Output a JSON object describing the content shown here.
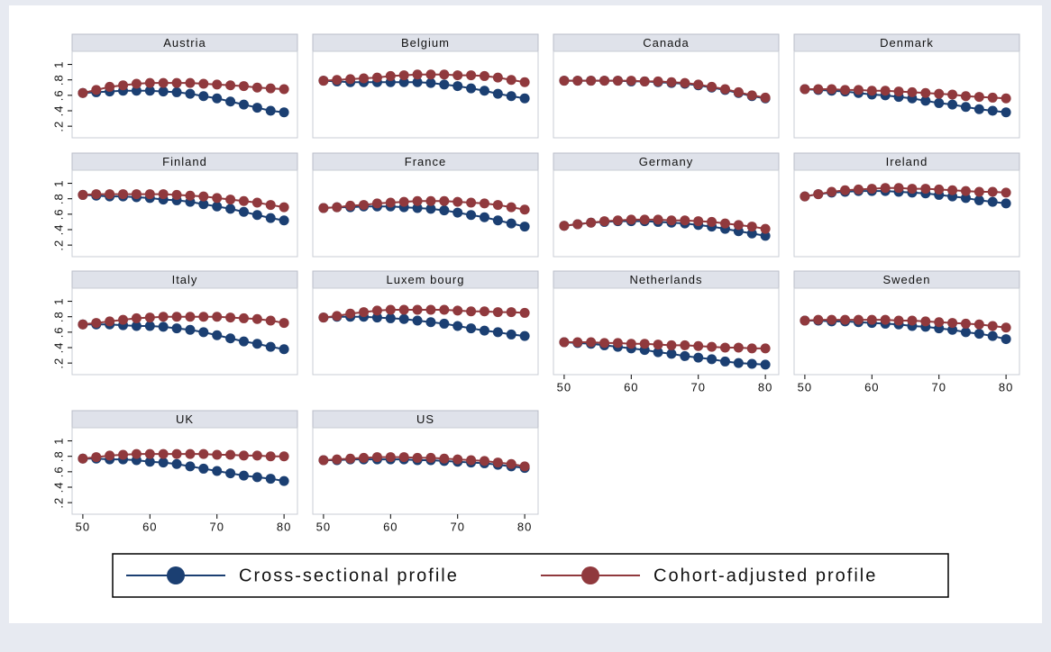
{
  "chart_data": {
    "type": "line",
    "x": [
      50,
      52,
      54,
      56,
      58,
      60,
      62,
      64,
      66,
      68,
      70,
      72,
      74,
      76,
      78,
      80
    ],
    "xlim": [
      48.4,
      82
    ],
    "xticks": [
      50,
      60,
      70,
      80
    ],
    "ylim": [
      0.05,
      1.17
    ],
    "yticks": [
      {
        "value": 0.2,
        "label": ".2"
      },
      {
        "value": 0.4,
        "label": ".4"
      },
      {
        "value": 0.6,
        "label": ".6"
      },
      {
        "value": 0.8,
        "label": ".8"
      },
      1
    ],
    "series": [
      {
        "name": "Cross-sectional profile",
        "color": "#1b3f72"
      },
      {
        "name": "Cohort-adjusted profile",
        "color": "#90393d"
      }
    ],
    "panels": [
      {
        "title": "Austria",
        "values": [
          [
            0.63,
            0.64,
            0.65,
            0.66,
            0.66,
            0.66,
            0.65,
            0.64,
            0.62,
            0.59,
            0.56,
            0.52,
            0.48,
            0.44,
            0.4,
            0.38
          ],
          [
            0.63,
            0.67,
            0.71,
            0.73,
            0.75,
            0.76,
            0.76,
            0.76,
            0.76,
            0.75,
            0.74,
            0.73,
            0.72,
            0.7,
            0.69,
            0.68
          ]
        ]
      },
      {
        "title": "Belgium",
        "values": [
          [
            0.79,
            0.78,
            0.77,
            0.77,
            0.77,
            0.77,
            0.77,
            0.77,
            0.76,
            0.74,
            0.72,
            0.69,
            0.66,
            0.62,
            0.59,
            0.56
          ],
          [
            0.79,
            0.8,
            0.81,
            0.82,
            0.83,
            0.85,
            0.86,
            0.87,
            0.87,
            0.87,
            0.86,
            0.86,
            0.85,
            0.83,
            0.8,
            0.77
          ]
        ]
      },
      {
        "title": "Canada",
        "values": [
          [
            0.79,
            0.79,
            0.79,
            0.79,
            0.79,
            0.78,
            0.78,
            0.77,
            0.76,
            0.75,
            0.73,
            0.7,
            0.67,
            0.63,
            0.59,
            0.56
          ],
          [
            0.79,
            0.79,
            0.79,
            0.79,
            0.79,
            0.79,
            0.78,
            0.78,
            0.77,
            0.76,
            0.74,
            0.71,
            0.68,
            0.64,
            0.6,
            0.57
          ]
        ]
      },
      {
        "title": "Denmark",
        "values": [
          [
            0.68,
            0.67,
            0.66,
            0.65,
            0.63,
            0.61,
            0.6,
            0.58,
            0.56,
            0.53,
            0.5,
            0.48,
            0.45,
            0.42,
            0.4,
            0.38
          ],
          [
            0.68,
            0.68,
            0.68,
            0.67,
            0.67,
            0.66,
            0.66,
            0.65,
            0.64,
            0.63,
            0.62,
            0.61,
            0.59,
            0.58,
            0.57,
            0.56
          ]
        ]
      },
      {
        "title": "Finland",
        "values": [
          [
            0.85,
            0.84,
            0.83,
            0.83,
            0.82,
            0.81,
            0.79,
            0.78,
            0.76,
            0.73,
            0.7,
            0.67,
            0.63,
            0.59,
            0.55,
            0.52
          ],
          [
            0.85,
            0.86,
            0.86,
            0.86,
            0.86,
            0.86,
            0.86,
            0.85,
            0.84,
            0.83,
            0.81,
            0.79,
            0.77,
            0.75,
            0.72,
            0.69
          ]
        ]
      },
      {
        "title": "France",
        "values": [
          [
            0.68,
            0.69,
            0.69,
            0.7,
            0.7,
            0.7,
            0.69,
            0.68,
            0.67,
            0.65,
            0.62,
            0.59,
            0.56,
            0.52,
            0.48,
            0.44
          ],
          [
            0.68,
            0.69,
            0.71,
            0.72,
            0.74,
            0.75,
            0.76,
            0.77,
            0.77,
            0.77,
            0.76,
            0.75,
            0.74,
            0.72,
            0.69,
            0.66
          ]
        ]
      },
      {
        "title": "Germany",
        "values": [
          [
            0.45,
            0.47,
            0.49,
            0.5,
            0.51,
            0.51,
            0.51,
            0.5,
            0.49,
            0.48,
            0.46,
            0.44,
            0.41,
            0.38,
            0.35,
            0.32
          ],
          [
            0.45,
            0.47,
            0.49,
            0.51,
            0.52,
            0.53,
            0.53,
            0.53,
            0.52,
            0.52,
            0.51,
            0.5,
            0.48,
            0.46,
            0.44,
            0.41
          ]
        ]
      },
      {
        "title": "Ireland",
        "values": [
          [
            0.83,
            0.86,
            0.88,
            0.89,
            0.9,
            0.9,
            0.9,
            0.89,
            0.88,
            0.87,
            0.85,
            0.83,
            0.81,
            0.78,
            0.76,
            0.74
          ],
          [
            0.83,
            0.86,
            0.89,
            0.91,
            0.92,
            0.93,
            0.94,
            0.94,
            0.93,
            0.93,
            0.92,
            0.91,
            0.9,
            0.89,
            0.89,
            0.88
          ]
        ]
      },
      {
        "title": "Italy",
        "values": [
          [
            0.7,
            0.7,
            0.7,
            0.69,
            0.68,
            0.68,
            0.67,
            0.65,
            0.63,
            0.6,
            0.56,
            0.52,
            0.48,
            0.45,
            0.41,
            0.38
          ],
          [
            0.7,
            0.72,
            0.74,
            0.76,
            0.78,
            0.79,
            0.8,
            0.8,
            0.8,
            0.8,
            0.8,
            0.79,
            0.78,
            0.77,
            0.75,
            0.72
          ]
        ]
      },
      {
        "title": "Luxem bourg",
        "values": [
          [
            0.79,
            0.8,
            0.8,
            0.8,
            0.79,
            0.78,
            0.77,
            0.75,
            0.73,
            0.71,
            0.68,
            0.65,
            0.62,
            0.6,
            0.57,
            0.55
          ],
          [
            0.79,
            0.81,
            0.84,
            0.86,
            0.88,
            0.89,
            0.89,
            0.89,
            0.89,
            0.89,
            0.88,
            0.87,
            0.87,
            0.86,
            0.86,
            0.85
          ]
        ]
      },
      {
        "title": "Netherlands",
        "values": [
          [
            0.47,
            0.46,
            0.45,
            0.43,
            0.41,
            0.39,
            0.37,
            0.34,
            0.32,
            0.29,
            0.27,
            0.25,
            0.22,
            0.2,
            0.19,
            0.18
          ],
          [
            0.47,
            0.47,
            0.47,
            0.46,
            0.46,
            0.45,
            0.45,
            0.44,
            0.43,
            0.43,
            0.42,
            0.41,
            0.4,
            0.4,
            0.39,
            0.39
          ]
        ]
      },
      {
        "title": "Sweden",
        "values": [
          [
            0.75,
            0.75,
            0.74,
            0.74,
            0.73,
            0.72,
            0.71,
            0.7,
            0.68,
            0.67,
            0.65,
            0.63,
            0.6,
            0.58,
            0.55,
            0.51
          ],
          [
            0.75,
            0.76,
            0.76,
            0.76,
            0.76,
            0.76,
            0.76,
            0.75,
            0.75,
            0.74,
            0.73,
            0.72,
            0.71,
            0.7,
            0.68,
            0.66
          ]
        ]
      },
      {
        "title": "UK",
        "values": [
          [
            0.77,
            0.77,
            0.76,
            0.76,
            0.75,
            0.73,
            0.72,
            0.7,
            0.67,
            0.64,
            0.61,
            0.58,
            0.55,
            0.53,
            0.51,
            0.48
          ],
          [
            0.77,
            0.79,
            0.81,
            0.82,
            0.83,
            0.83,
            0.83,
            0.83,
            0.83,
            0.83,
            0.82,
            0.82,
            0.81,
            0.81,
            0.8,
            0.8
          ]
        ]
      },
      {
        "title": "US",
        "values": [
          [
            0.75,
            0.75,
            0.76,
            0.76,
            0.76,
            0.76,
            0.76,
            0.75,
            0.75,
            0.74,
            0.73,
            0.72,
            0.71,
            0.69,
            0.67,
            0.65
          ],
          [
            0.75,
            0.76,
            0.77,
            0.78,
            0.79,
            0.79,
            0.79,
            0.78,
            0.78,
            0.77,
            0.76,
            0.75,
            0.74,
            0.72,
            0.7,
            0.67
          ]
        ]
      }
    ]
  }
}
